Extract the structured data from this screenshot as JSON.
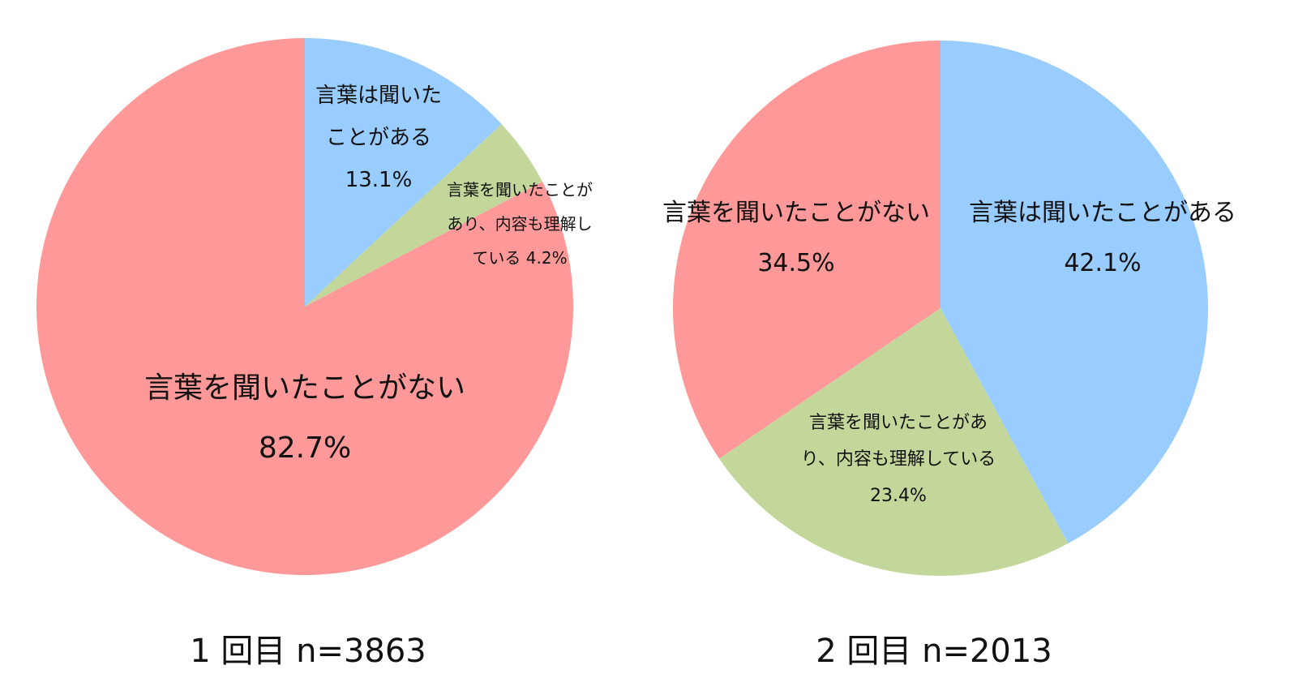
{
  "colors": {
    "heard_word": "#99ccff",
    "understood": "#c4d79b",
    "never_heard": "#ff9999"
  },
  "chart_data": [
    {
      "type": "pie",
      "caption": "1 回目 n=3863",
      "n": 3863,
      "start_angle_deg": 0,
      "direction": "clockwise",
      "slices": [
        {
          "key": "heard",
          "label_lines": [
            "言葉は聞いた",
            "ことがある",
            "13.1%"
          ],
          "value": 13.1,
          "color": "#99ccff"
        },
        {
          "key": "understood",
          "label_lines": [
            "言葉を聞いたことが",
            "あり、内容も理解し",
            "ている 4.2%"
          ],
          "value": 4.2,
          "color": "#c4d79b"
        },
        {
          "key": "never",
          "label_lines": [
            "言葉を聞いたことがない",
            "82.7%"
          ],
          "value": 82.7,
          "color": "#ff9999"
        }
      ]
    },
    {
      "type": "pie",
      "caption": "2 回目 n=2013",
      "n": 2013,
      "start_angle_deg": 0,
      "direction": "clockwise",
      "slices": [
        {
          "key": "heard",
          "label_lines": [
            "言葉は聞いたことがある",
            "42.1%"
          ],
          "value": 42.1,
          "color": "#99ccff"
        },
        {
          "key": "understood",
          "label_lines": [
            "言葉を聞いたことがあ",
            "り、内容も理解している",
            "23.4%"
          ],
          "value": 23.4,
          "color": "#c4d79b"
        },
        {
          "key": "never",
          "label_lines": [
            "言葉を聞いたことがない",
            "34.5%"
          ],
          "value": 34.5,
          "color": "#ff9999"
        }
      ]
    }
  ]
}
